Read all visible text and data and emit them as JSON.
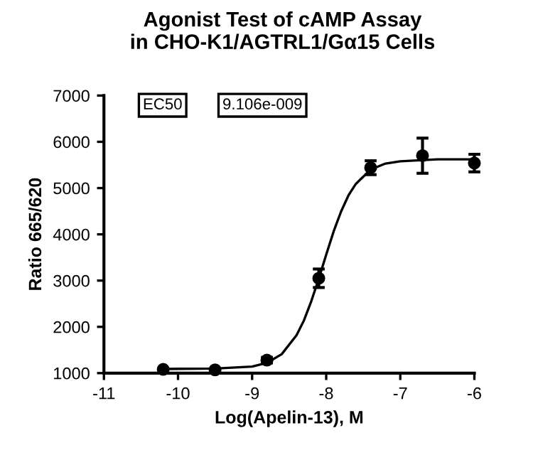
{
  "chart_data": {
    "type": "scatter",
    "title": "Agonist Test of cAMP Assay\nin CHO-K1/AGTRL1/Gα15 Cells",
    "xlabel": "Log(Apelin-13), M",
    "ylabel": "Ratio 665/620",
    "annotations": [
      "EC50",
      "9.106e-009"
    ],
    "series": [
      {
        "color": "#000000",
        "marker": "circle",
        "x": [
          -10.2,
          -9.5,
          -8.8,
          -8.1,
          -7.4,
          -6.7,
          -6.0
        ],
        "values": [
          1080,
          1070,
          1280,
          3050,
          5440,
          5700,
          5540
        ],
        "errors": [
          null,
          null,
          60,
          200,
          150,
          380,
          190
        ]
      },
      {
        "type": "line",
        "color": "#000000",
        "marker": "none",
        "x": [
          -10.2,
          -9.5,
          -9.0,
          -8.8,
          -8.6,
          -8.4,
          -8.3,
          -8.2,
          -8.1,
          -8.0,
          -7.9,
          -7.8,
          -7.7,
          -7.6,
          -7.4,
          -7.2,
          -7.0,
          -6.5,
          -6.0
        ],
        "values": [
          1090,
          1100,
          1140,
          1220,
          1410,
          1820,
          2140,
          2560,
          3040,
          3560,
          4060,
          4490,
          4840,
          5090,
          5400,
          5530,
          5580,
          5620,
          5620
        ]
      }
    ],
    "xlim": [
      -11,
      -6
    ],
    "xticks": [
      -11,
      -10,
      -9,
      -8,
      -7,
      -6
    ],
    "ylim": [
      1000,
      7000
    ],
    "yticks": [
      1000,
      2000,
      3000,
      4000,
      5000,
      6000,
      7000
    ],
    "grid": false,
    "legend": false
  }
}
